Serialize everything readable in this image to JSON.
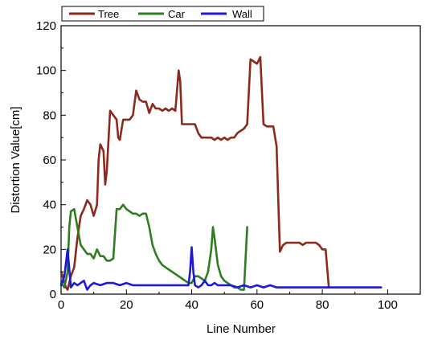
{
  "chart_data": {
    "type": "line",
    "xlabel": "Line Number",
    "ylabel": "Distortion Value[cm]",
    "xlim": [
      0,
      110
    ],
    "ylim": [
      0,
      120
    ],
    "xticks": [
      "0",
      "20",
      "40",
      "60",
      "80",
      "100"
    ],
    "yticks": [
      "0",
      "20",
      "40",
      "60",
      "80",
      "100",
      "120"
    ],
    "grid": false,
    "legend_position": "top-left, outside above plot",
    "series": [
      {
        "name": "Tree",
        "color": "#8b2a1a",
        "x": [
          0,
          0.5,
          1,
          1.5,
          2,
          3,
          4,
          5,
          6,
          7,
          8,
          9,
          10,
          11,
          11.5,
          12,
          13,
          13.5,
          14,
          15,
          16,
          17,
          17.5,
          18,
          19,
          20,
          21,
          22,
          23,
          24,
          25,
          26,
          27,
          28,
          29,
          30,
          31,
          32,
          33,
          34,
          35,
          36,
          36.5,
          37,
          38,
          39,
          40,
          41,
          42,
          43,
          44,
          45,
          46,
          47,
          48,
          49,
          50,
          51,
          52,
          53,
          54,
          55,
          56,
          57,
          58,
          59,
          60,
          61,
          62,
          63,
          64,
          65,
          66,
          67,
          68,
          69,
          70,
          71,
          72,
          73,
          74,
          75,
          76,
          77,
          78,
          79,
          80,
          81,
          82
        ],
        "values": [
          10,
          8,
          5,
          3,
          2,
          8,
          12,
          25,
          35,
          38,
          42,
          40,
          35,
          40,
          60,
          67,
          64,
          49,
          55,
          82,
          80,
          78,
          70,
          69,
          78,
          78,
          78,
          80,
          91,
          87,
          86,
          86,
          81,
          85,
          83,
          83,
          82,
          83,
          82,
          83,
          82,
          100,
          95,
          76,
          76,
          76,
          76,
          76,
          72,
          70,
          70,
          70,
          70,
          69,
          70,
          69,
          70,
          69,
          70,
          70,
          72,
          73,
          74,
          76,
          105,
          104,
          103,
          106,
          76,
          75,
          75,
          75,
          66,
          19,
          22,
          23,
          23,
          23,
          23,
          23,
          22,
          23,
          23,
          23,
          23,
          22,
          20,
          20,
          3
        ]
      },
      {
        "name": "Car",
        "color": "#2e7d20",
        "x": [
          0,
          1,
          2,
          2.5,
          3,
          4,
          5,
          6,
          7,
          8,
          9,
          10,
          11,
          12,
          13,
          14,
          15,
          16,
          17,
          18,
          19,
          20,
          21,
          22,
          23,
          24,
          25,
          26,
          27,
          28,
          29,
          30,
          31,
          32,
          33,
          34,
          35,
          36,
          37,
          38,
          39,
          40,
          41,
          42,
          43,
          44,
          45,
          46,
          46.5,
          47,
          48,
          49,
          50,
          51,
          52,
          53,
          54,
          55,
          56,
          57
        ],
        "values": [
          5,
          3,
          10,
          30,
          37,
          38,
          30,
          22,
          20,
          18,
          18,
          16,
          20,
          17,
          17,
          15,
          15,
          16,
          38,
          38,
          40,
          38,
          37,
          36,
          36,
          35,
          36,
          36,
          30,
          22,
          18,
          15,
          13,
          12,
          11,
          10,
          9,
          8,
          7,
          6,
          5,
          5,
          8,
          8,
          7,
          6,
          10,
          20,
          30,
          25,
          13,
          8,
          6,
          5,
          4,
          3,
          3,
          2,
          2,
          30
        ]
      },
      {
        "name": "Wall",
        "color": "#1f18d8",
        "x": [
          0,
          1,
          2,
          3,
          4,
          5,
          6,
          7,
          8,
          9,
          10,
          12,
          14,
          16,
          18,
          20,
          22,
          24,
          26,
          28,
          30,
          32,
          34,
          36,
          38,
          39,
          39.5,
          40,
          40.5,
          41,
          42,
          43,
          44,
          45,
          46,
          47,
          48,
          50,
          52,
          54,
          56,
          58,
          60,
          62,
          64,
          66,
          68,
          70,
          72,
          74,
          76,
          78,
          80,
          82,
          84,
          86,
          88,
          90,
          92,
          94,
          96,
          98
        ],
        "values": [
          4,
          8,
          20,
          3,
          5,
          4,
          5,
          6,
          2,
          4,
          5,
          4,
          5,
          5,
          4,
          5,
          4,
          4,
          4,
          4,
          4,
          4,
          4,
          4,
          4,
          4,
          10,
          21,
          10,
          4,
          3,
          4,
          6,
          4,
          4,
          5,
          4,
          4,
          4,
          3,
          4,
          3,
          4,
          3,
          4,
          3,
          3,
          3,
          3,
          3,
          3,
          3,
          3,
          3,
          3,
          3,
          3,
          3,
          3,
          3,
          3,
          3
        ]
      }
    ]
  }
}
